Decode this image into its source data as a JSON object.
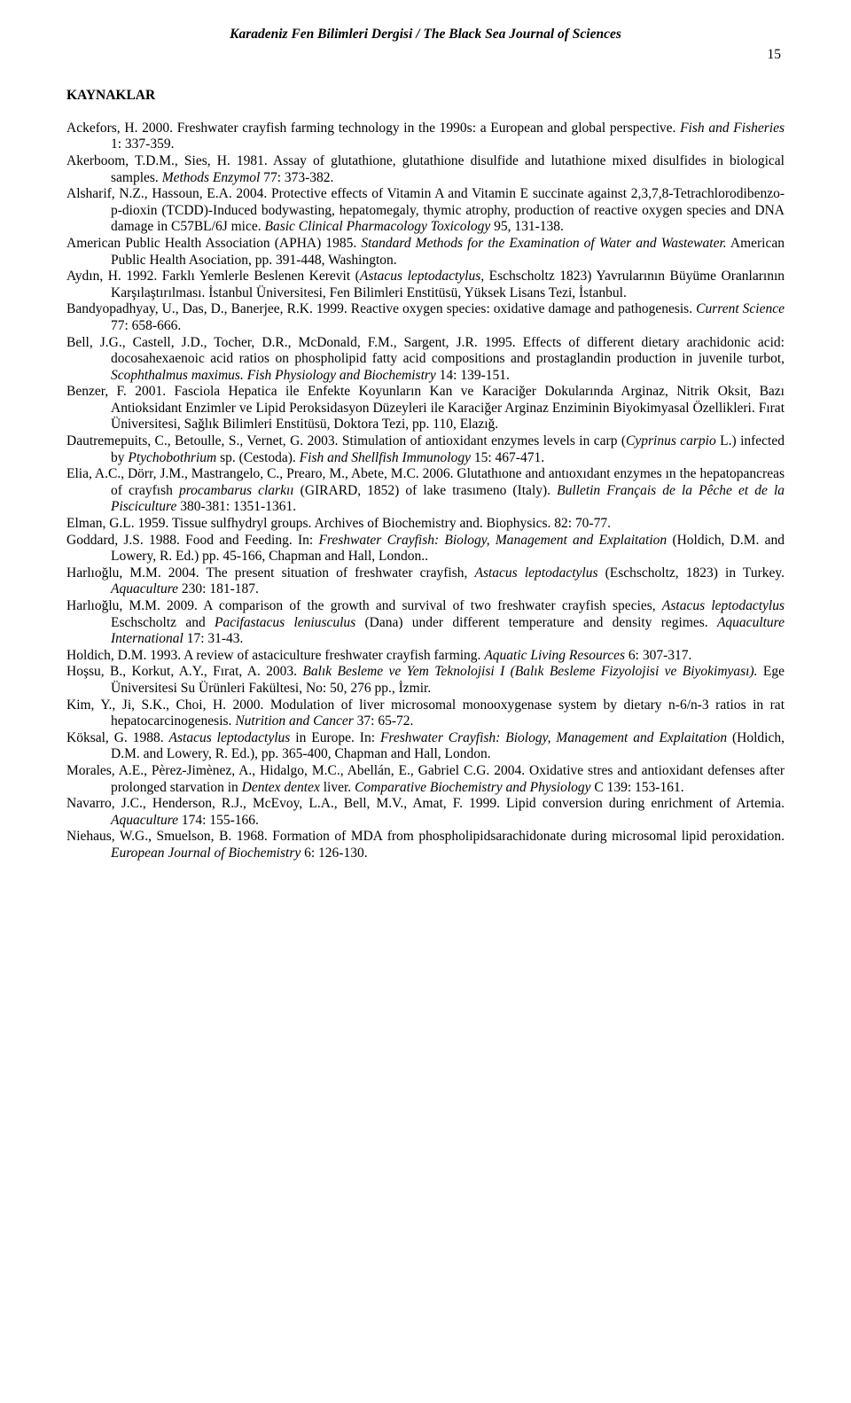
{
  "header": {
    "journal_title": "Karadeniz Fen Bilimleri Dergisi / The Black Sea Journal of Sciences",
    "page_number": "15"
  },
  "section": {
    "heading": "KAYNAKLAR"
  },
  "refs": {
    "r01_a": "Ackefors, H. 2000. Freshwater crayfish farming technology in the 1990s: a European and global perspective. ",
    "r01_i": "Fish and Fisheries",
    "r01_b": " 1: 337-359.",
    "r02_a": "Akerboom, T.D.M., Sies, H. 1981. Assay of glutathione, glutathione disulfide and lutathione mixed disulfides in biological samples. ",
    "r02_i": "Methods Enzymol",
    "r02_b": " 77: 373-382.",
    "r03_a": "Alsharif, N.Z., Hassoun, E.A. 2004. Protective effects of Vitamin A and Vitamin E succinate against 2,3,7,8-Tetrachlorodibenzo-p-dioxin (TCDD)-Induced bodywasting, hepatomegaly, thymic atrophy, production of reactive oxygen species and DNA damage in C57BL/6J mice. ",
    "r03_i": "Basic Clinical Pharmacology Toxicology",
    "r03_b": " 95, 131-138.",
    "r04_a": "American Public Health Association (APHA) 1985. ",
    "r04_i": "Standard Methods for the Examination of Water and Wastewater.",
    "r04_b": " American Public Health Asociation, pp. 391-448, Washington.",
    "r05_a": "Aydın, H. 1992. Farklı Yemlerle Beslenen Kerevit (",
    "r05_i": "Astacus leptodactylus,",
    "r05_b": " Eschscholtz 1823) Yavrularının Büyüme Oranlarının Karşılaştırılması. İstanbul Üniversitesi, Fen Bilimleri Enstitüsü, Yüksek Lisans Tezi, İstanbul.",
    "r06_a": "Bandyopadhyay, U., Das, D., Banerjee, R.K. 1999. Reactive oxygen species: oxidative damage and pathogenesis. ",
    "r06_i": "Current Science",
    "r06_b": " 77: 658-666.",
    "r07_a": "Bell, J.G., Castell, J.D., Tocher, D.R., McDonald, F.M., Sargent, J.R. 1995. Effects of different dietary arachidonic acid: docosahexaenoic acid ratios on phospholipid fatty acid compositions and prostaglandin production in juvenile turbot, ",
    "r07_i": "Scophthalmus maximus. Fish Physiology and Biochemistry",
    "r07_b": " 14: 139-151.",
    "r08_a": "Benzer, F. 2001. Fasciola Hepatica ile Enfekte Koyunların Kan ve Karaciğer Dokularında Arginaz, Nitrik Oksit, Bazı Antioksidant Enzimler ve Lipid Peroksidasyon Düzeyleri ile Karaciğer Arginaz Enziminin Biyokimyasal Özellikleri. Fırat Üniversitesi, Sağlık Bilimleri Enstitüsü, Doktora Tezi, pp. 110, Elazığ.",
    "r09_a": "Dautremepuits, C., Betoulle, S., Vernet, G. 2003. Stimulation of antioxidant enzymes levels in carp (",
    "r09_i1": "Cyprinus carpio",
    "r09_b": " L.) infected by ",
    "r09_i2": "Ptychobothrium",
    "r09_c": " sp. (Cestoda). ",
    "r09_i3": "Fish and Shellfish Immunology",
    "r09_d": " 15: 467-471.",
    "r10_a": "Elia, A.C., Dörr, J.M., Mastrangelo, C., Prearo, M., Abete, M.C. 2006. Glutathıone and antıoxıdant enzymes ın the hepatopancreas of crayfısh ",
    "r10_i1": "procambarus clarkıı",
    "r10_b": " (GIRARD, 1852) of lake trasımeno (Italy). ",
    "r10_i2": "Bulletin Français de la Pêche et de la Pisciculture",
    "r10_c": " 380-381: 1351-1361.",
    "r11_a": "Elman, G.L. 1959. Tissue sulfhydryl groups. Archives of Biochemistry and. Biophysics. 82: 70-77.",
    "r12_a": "Goddard, J.S. 1988. Food and Feeding. In: ",
    "r12_i": "Freshwater Crayfish: Biology, Management and Explaitation",
    "r12_b": " (Holdich, D.M. and Lowery, R. Ed.) pp. 45-166, Chapman and Hall, London..",
    "r13_a": "Harlıoğlu, M.M. 2004. The present situation of freshwater crayfish, ",
    "r13_i1": "Astacus leptodactylus",
    "r13_b": " (Eschscholtz, 1823) in Turkey. ",
    "r13_i2": "Aquaculture",
    "r13_c": " 230: 181-187.",
    "r14_a": "Harlıoğlu, M.M. 2009. A comparison of the growth and survival of two freshwater crayfish species, ",
    "r14_i1": "Astacus leptodactylus",
    "r14_b": " Eschscholtz and ",
    "r14_i2": "Pacifastacus leniusculus",
    "r14_c": " (Dana) under different temperature and density regimes. ",
    "r14_i3": "Aquaculture International",
    "r14_d": " 17: 31-43.",
    "r15_a": "Holdich, D.M. 1993. A review of astaciculture freshwater crayfish farming. ",
    "r15_i1": "Aquatic Living Resources",
    "r15_b": " 6: 307-317.",
    "r16_a": "Hoşsu, B., Korkut, A.Y., Fırat, A. 2003. ",
    "r16_i": "Balık Besleme ve Yem Teknolojisi I (Balık Besleme Fizyolojisi ve Biyokimyası).",
    "r16_b": " Ege Üniversitesi Su Ürünleri Fakültesi, No: 50, 276 pp., İzmir.",
    "r17_a": "Kim, Y., Ji, S.K., Choi, H. 2000. Modulation of liver microsomal monooxygenase system by dietary n-6/n-3 ratios in rat hepatocarcinogenesis. ",
    "r17_i": "Nutrition and Cancer",
    "r17_b": " 37: 65-72.",
    "r18_a": "Köksal, G. 1988. ",
    "r18_i1": "Astacus leptodactylus",
    "r18_b": " in Europe. In: ",
    "r18_i2": "Freshwater Crayfish: Biology, Management and Explaitation",
    "r18_c": " (Holdich, D.M. and Lowery, R. Ed.), pp. 365-400, Chapman and Hall, London.",
    "r19_a": "Morales, A.E., Pèrez-Jimènez, A., Hidalgo, M.C., Abellán, E., Gabriel C.G. 2004. Oxidative stres and antioxidant defenses after prolonged starvation in ",
    "r19_i1": "Dentex dentex",
    "r19_b": " liver. ",
    "r19_i2": "Comparative Biochemistry and Physiology",
    "r19_c": " C 139: 153-161.",
    "r20_a": "Navarro, J.C., Henderson, R.J., McEvoy, L.A., Bell, M.V., Amat, F. 1999. Lipid conversion during enrichment of Artemia. ",
    "r20_i": "Aquaculture",
    "r20_b": " 174: 155-166.",
    "r21_a": "Niehaus, W.G., Smuelson, B. 1968. Formation of MDA from phospholipidsarachidonate during microsomal lipid peroxidation. ",
    "r21_i": "European Journal of Biochemistry",
    "r21_b": " 6: 126-130."
  }
}
